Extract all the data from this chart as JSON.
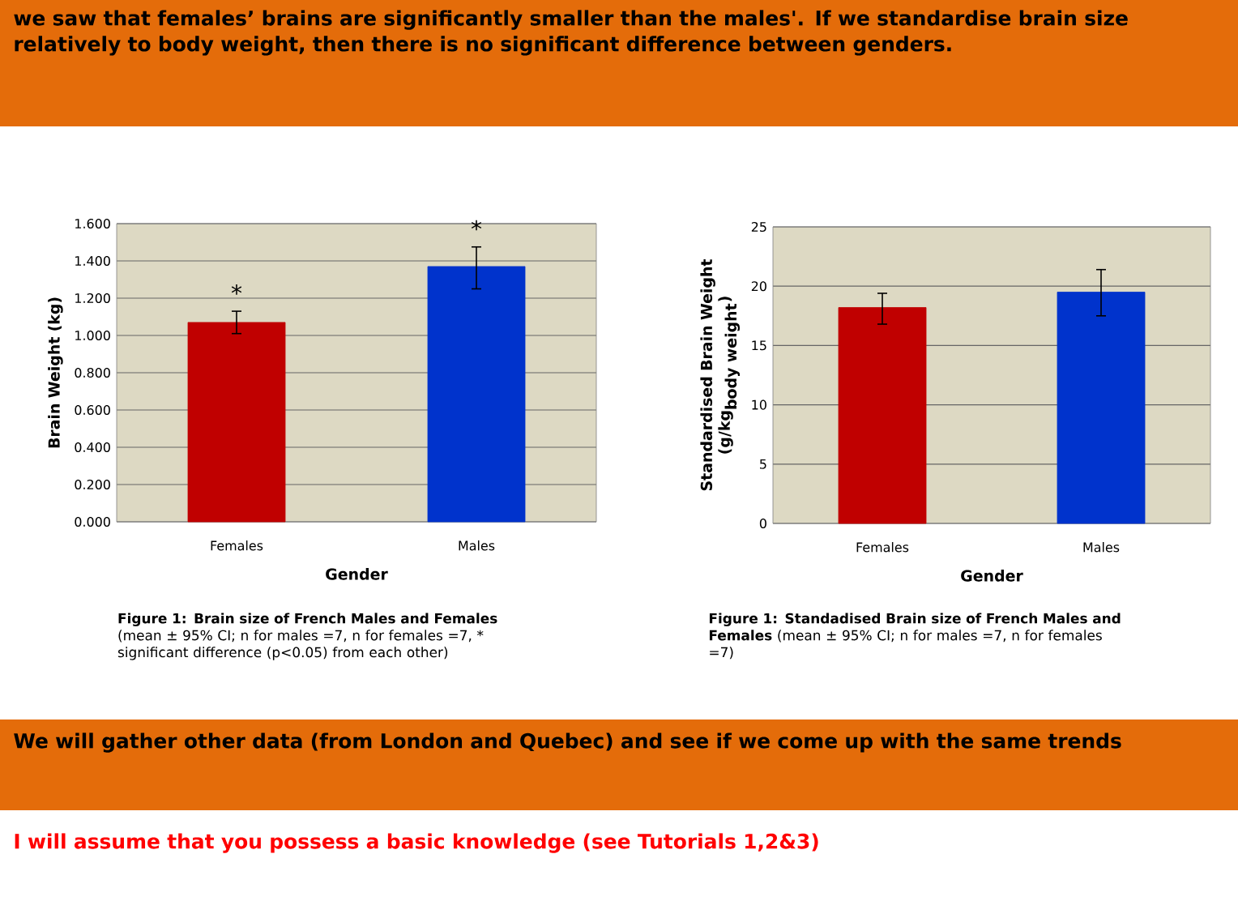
{
  "chart_data": [
    {
      "type": "other",
      "annotations": [
        "we saw that females’ brains are significantly smaller than the males'. If we standardise brain size relatively to body weight, then there is no significant difference between genders."
      ]
    },
    {
      "type": "bar",
      "xlabel": "Gender",
      "ylabel": "Brain Weight (kg)",
      "categories": [
        "Females",
        "Males"
      ],
      "values": [
        1.07,
        1.37
      ],
      "colors": [
        "#c00000",
        "#0033cc"
      ],
      "errors": [
        [
          1.01,
          1.13
        ],
        [
          1.25,
          1.475
        ]
      ],
      "ylim": [
        0,
        1.6
      ],
      "yticks": [
        {
          "value": 0,
          "label": "0.000"
        },
        {
          "value": 0.2,
          "label": "0.200"
        },
        {
          "value": 0.4,
          "label": "0.400"
        },
        {
          "value": 0.6,
          "label": "0.600"
        },
        {
          "value": 0.8,
          "label": "0.800"
        },
        {
          "value": 1.0,
          "label": "1.000"
        },
        {
          "value": 1.2,
          "label": "1.200"
        },
        {
          "value": 1.4,
          "label": "1.400"
        },
        {
          "value": 1.6,
          "label": "1.600"
        }
      ],
      "grid": "y",
      "annotations": [
        "*",
        "*",
        "**Figure 1: Brain size of French Males and Females**",
        "(mean ± 95% CI; n for males =7, n for females =7, * significant difference (p<0.05) from each other)"
      ]
    },
    {
      "type": "bar",
      "xlabel": "Gender",
      "ylabel": "\\begin{array}{c}\\textbf{Standardised Brain Weight}\\\\ \\textbf{(g/kg}_{\\textbf{body weight}}\\textbf{)}\\end{array}",
      "categories": [
        "Females",
        "Males"
      ],
      "values": [
        18.2,
        19.5
      ],
      "colors": [
        "#c00000",
        "#0033cc"
      ],
      "errors": [
        [
          16.8,
          19.4
        ],
        [
          17.5,
          21.4
        ]
      ],
      "ylim": [
        0,
        25
      ],
      "yticks": [
        0,
        5,
        10,
        15,
        20,
        25
      ],
      "grid": "y",
      "annotations": [
        "**Figure 1: Standadised Brain size of French Males and Females**",
        "(mean ± 95% CI; n for males =7, n for females =7)"
      ]
    },
    {
      "type": "other",
      "annotations": [
        "We will gather other data (from London and Quebec) and see if we come up with the same trends",
        "I will assume that you possess a basic knowledge (see Tutorials 1,2&3)"
      ]
    }
  ]
}
